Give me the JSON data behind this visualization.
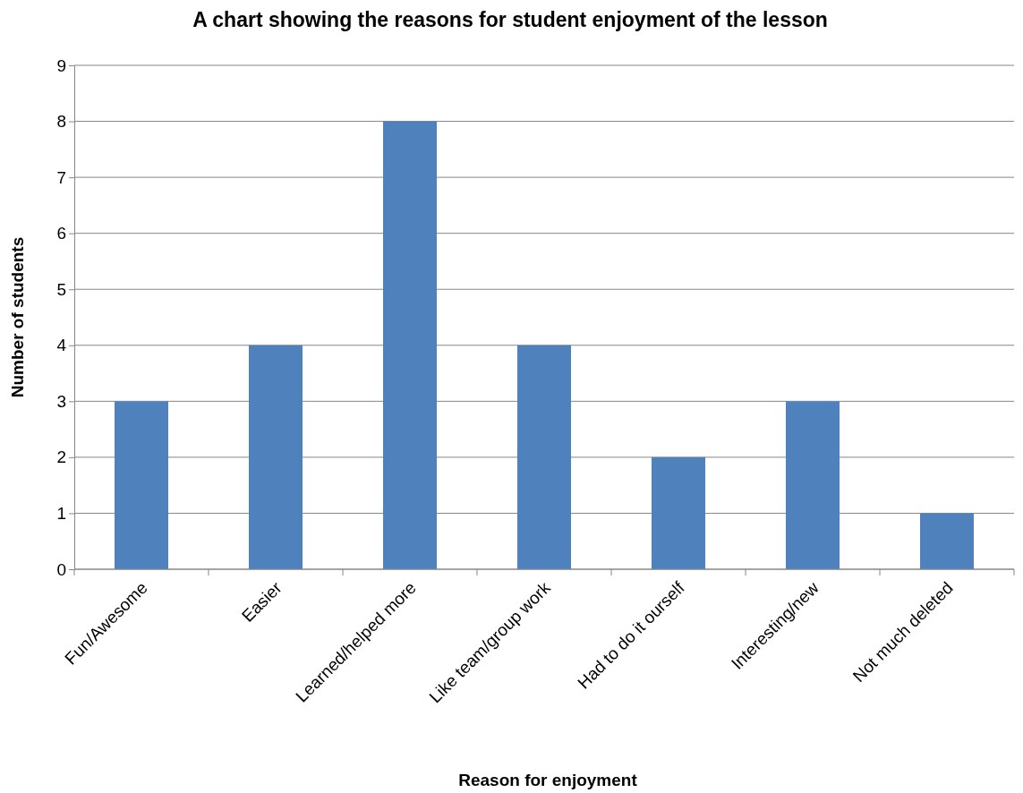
{
  "chart_data": {
    "type": "bar",
    "title": "A chart showing the reasons for student enjoyment of the lesson",
    "xlabel": "Reason for enjoyment",
    "ylabel": "Number of students",
    "categories": [
      "Fun/Awesome",
      "Easier",
      "Learned/helped more",
      "Like team/group work",
      "Had to do it ourself",
      "Interesting/new",
      "Not much deleted"
    ],
    "values": [
      3,
      4,
      8,
      4,
      2,
      3,
      1
    ],
    "color": "#4f81bd",
    "ylim": [
      0,
      9
    ],
    "yticks": [
      0,
      1,
      2,
      3,
      4,
      5,
      6,
      7,
      8,
      9
    ],
    "grid": "y",
    "legend": false
  }
}
